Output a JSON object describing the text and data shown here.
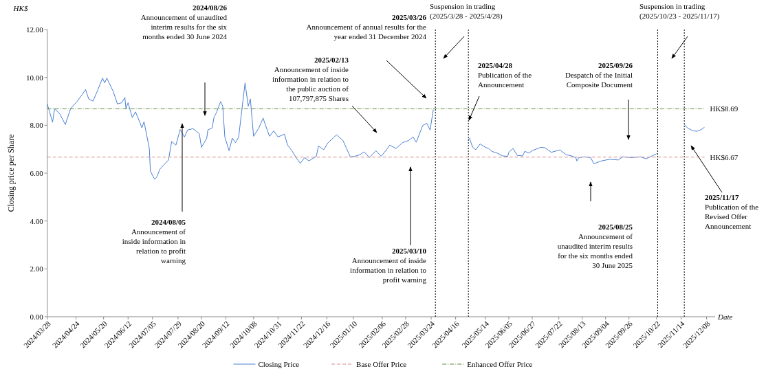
{
  "chart_data": {
    "type": "line",
    "xlabel": "Date",
    "ylabel": "Closing price per Share",
    "xlim": [
      "2024-03-28",
      "2025-12-16"
    ],
    "xticks": [
      {
        "value": "2024-03-28",
        "label": "2024/03/28"
      },
      {
        "value": "2024-04-24",
        "label": "2024/04/24"
      },
      {
        "value": "2024-05-20",
        "label": "2024/05/20"
      },
      {
        "value": "2024-06-12",
        "label": "2024/06/12"
      },
      {
        "value": "2024-07-05",
        "label": "2024/07/05"
      },
      {
        "value": "2024-07-29",
        "label": "2024/07/29"
      },
      {
        "value": "2024-08-20",
        "label": "2024/08/20"
      },
      {
        "value": "2024-09-12",
        "label": "2024/09/12"
      },
      {
        "value": "2024-10-08",
        "label": "2024/10/08"
      },
      {
        "value": "2024-10-31",
        "label": "2024/10/31"
      },
      {
        "value": "2024-11-22",
        "label": "2024/11/22"
      },
      {
        "value": "2024-12-16",
        "label": "2024/12/16"
      },
      {
        "value": "2025-01-10",
        "label": "2025/01/10"
      },
      {
        "value": "2025-02-06",
        "label": "2025/02/06"
      },
      {
        "value": "2025-02-28",
        "label": "2025/02/28"
      },
      {
        "value": "2025-03-24",
        "label": "2025/03/24"
      },
      {
        "value": "2025-04-16",
        "label": "2025/04/16"
      },
      {
        "value": "2025-05-14",
        "label": "2025/05/14"
      },
      {
        "value": "2025-06-05",
        "label": "2025/06/05"
      },
      {
        "value": "2025-06-27",
        "label": "2025/06/27"
      },
      {
        "value": "2025-07-22",
        "label": "2025/07/22"
      },
      {
        "value": "2025-08-13",
        "label": "2025/08/13"
      },
      {
        "value": "2025-09-04",
        "label": "2025/09/04"
      },
      {
        "value": "2025-09-26",
        "label": "2025/09/26"
      },
      {
        "value": "2025-10-22",
        "label": "2025/10/22"
      },
      {
        "value": "2025-11-14",
        "label": "2025/11/14"
      },
      {
        "value": "2025-12-08",
        "label": "2025/12/08"
      }
    ],
    "ylim": [
      0,
      12
    ],
    "yticks": [
      {
        "value": 0,
        "label": "0.00"
      },
      {
        "value": 2,
        "label": "2.00"
      },
      {
        "value": 4,
        "label": "4.00"
      },
      {
        "value": 6,
        "label": "6.00"
      },
      {
        "value": 8,
        "label": "8.00"
      },
      {
        "value": 10,
        "label": "10.00"
      },
      {
        "value": 12,
        "label": "12.00"
      }
    ],
    "grid": false,
    "legend": "bottom",
    "marker": "none",
    "series": [
      {
        "name": "Closing Price",
        "color": "#4a7fd4",
        "line_style": "solid",
        "x": [
          "2024-03-28",
          "2024-04-02",
          "2024-04-04",
          "2024-04-09",
          "2024-04-14",
          "2024-04-19",
          "2024-04-25",
          "2024-04-29",
          "2024-05-03",
          "2024-05-06",
          "2024-05-10",
          "2024-05-14",
          "2024-05-19",
          "2024-05-21",
          "2024-05-23",
          "2024-05-29",
          "2024-06-02",
          "2024-06-06",
          "2024-06-09",
          "2024-06-10",
          "2024-06-12",
          "2024-06-16",
          "2024-06-19",
          "2024-06-23",
          "2024-06-25",
          "2024-06-27",
          "2024-07-02",
          "2024-07-03",
          "2024-07-07",
          "2024-07-09",
          "2024-07-12",
          "2024-07-20",
          "2024-07-23",
          "2024-07-27",
          "2024-07-31",
          "2024-08-04",
          "2024-08-07",
          "2024-08-12",
          "2024-08-18",
          "2024-08-20",
          "2024-08-25",
          "2024-08-26",
          "2024-08-30",
          "2024-09-01",
          "2024-09-03",
          "2024-09-07",
          "2024-09-09",
          "2024-09-11",
          "2024-09-15",
          "2024-09-18",
          "2024-09-21",
          "2024-09-24",
          "2024-09-30",
          "2024-10-03",
          "2024-10-05",
          "2024-10-08",
          "2024-10-13",
          "2024-10-17",
          "2024-10-19",
          "2024-10-23",
          "2024-10-27",
          "2024-10-31",
          "2024-11-06",
          "2024-11-09",
          "2024-11-13",
          "2024-11-17",
          "2024-11-21",
          "2024-11-25",
          "2024-11-29",
          "2024-12-06",
          "2024-12-08",
          "2024-12-13",
          "2024-12-17",
          "2024-12-25",
          "2024-12-31",
          "2025-01-07",
          "2025-01-11",
          "2025-01-16",
          "2025-01-20",
          "2025-01-25",
          "2025-01-31",
          "2025-02-05",
          "2025-02-10",
          "2025-02-13",
          "2025-02-19",
          "2025-02-25",
          "2025-03-03",
          "2025-03-07",
          "2025-03-10",
          "2025-03-16",
          "2025-03-20",
          "2025-03-23",
          "2025-03-26",
          "2025-04-10",
          "2025-04-28",
          "2025-04-29",
          "2025-05-02",
          "2025-05-05",
          "2025-05-09",
          "2025-05-14",
          "2025-05-17",
          "2025-05-20",
          "2025-05-25",
          "2025-05-30",
          "2025-06-04",
          "2025-06-05",
          "2025-06-09",
          "2025-06-13",
          "2025-06-18",
          "2025-06-20",
          "2025-06-24",
          "2025-06-27",
          "2025-07-05",
          "2025-07-09",
          "2025-07-15",
          "2025-07-23",
          "2025-07-29",
          "2025-08-03",
          "2025-08-07",
          "2025-08-08",
          "2025-08-10",
          "2025-08-15",
          "2025-08-21",
          "2025-08-24",
          "2025-08-31",
          "2025-09-08",
          "2025-09-16",
          "2025-09-20",
          "2025-09-28",
          "2025-10-07",
          "2025-10-12",
          "2025-10-22",
          "2025-11-01",
          "2025-11-17",
          "2025-11-20",
          "2025-11-25",
          "2025-11-29",
          "2025-12-03",
          "2025-12-06"
        ],
        "values": [
          8.89,
          8.13,
          8.7,
          8.46,
          8.03,
          8.7,
          8.99,
          9.23,
          9.49,
          9.1,
          9.01,
          9.42,
          9.97,
          9.77,
          9.97,
          9.42,
          8.89,
          8.94,
          9.16,
          8.7,
          8.94,
          8.32,
          8.56,
          8.13,
          7.89,
          8.15,
          7.03,
          6.08,
          5.74,
          5.84,
          6.17,
          6.55,
          7.32,
          7.17,
          7.82,
          7.51,
          7.8,
          7.86,
          7.65,
          7.08,
          7.46,
          7.8,
          7.89,
          8.37,
          8.51,
          8.99,
          8.8,
          7.51,
          6.94,
          7.46,
          7.27,
          7.51,
          9.77,
          8.8,
          9.1,
          7.54,
          7.89,
          8.3,
          8.03,
          7.54,
          7.77,
          7.51,
          7.63,
          7.17,
          6.94,
          6.65,
          6.41,
          6.65,
          6.51,
          6.7,
          7.13,
          6.98,
          7.27,
          7.6,
          7.37,
          6.68,
          6.7,
          6.77,
          6.89,
          6.65,
          6.94,
          6.7,
          6.98,
          7.17,
          7.03,
          7.27,
          7.37,
          7.51,
          7.29,
          7.99,
          8.08,
          7.8,
          8.65,
          null,
          7.41,
          7.46,
          7.08,
          6.98,
          7.22,
          7.08,
          7.03,
          6.91,
          6.84,
          6.72,
          6.7,
          6.87,
          7.03,
          6.74,
          6.72,
          6.91,
          6.84,
          6.94,
          7.08,
          7.06,
          6.87,
          6.97,
          6.77,
          6.72,
          6.65,
          6.51,
          6.65,
          6.68,
          6.65,
          6.39,
          6.51,
          6.58,
          6.55,
          6.68,
          6.65,
          6.68,
          6.6,
          6.81,
          null,
          8.03,
          7.89,
          7.77,
          7.75,
          7.82,
          7.92
        ]
      },
      {
        "name": "Base Offer Price",
        "color": "#d58a87",
        "line_style": "dashed",
        "x": [
          "2024-03-28",
          "2025-12-06"
        ],
        "values": [
          6.67,
          6.67
        ],
        "value_labels": [
          null,
          "HK$6.67"
        ]
      },
      {
        "name": "Enhanced Offer Price",
        "color": "#5a8a3a",
        "line_style": "dashdot",
        "x": [
          "2024-03-28",
          "2025-12-06"
        ],
        "values": [
          8.69,
          8.69
        ],
        "value_labels": [
          null,
          "HK$8.69"
        ]
      }
    ],
    "ref_lines": [
      {
        "axis": "x",
        "value": "2025-03-28",
        "label": null,
        "color": "#000000",
        "line_style": "dotted"
      },
      {
        "axis": "x",
        "value": "2025-04-28",
        "label": null,
        "color": "#000000",
        "line_style": "dotted"
      },
      {
        "axis": "x",
        "value": "2025-10-23",
        "label": null,
        "color": "#000000",
        "line_style": "dotted"
      },
      {
        "axis": "x",
        "value": "2025-11-17",
        "label": null,
        "color": "#000000",
        "line_style": "dotted"
      }
    ],
    "annotations": [
      "HK$",
      "2024/08/26\nAnnouncement of unaudited\ninterim results for the six\nmonths ended 30 June 2024",
      "2024/08/05\nAnnouncement of\ninside information in\nrelation to profit\nwarning",
      "2025/02/13\nAnnouncement of inside\ninformation in relation to\nthe public auction of\n107,797,875 Shares",
      "2025/03/26\nAnnouncement of annual results for the\nyear ended 31 December 2024",
      "2025/03/10\nAnnouncement of inside\ninformation in relation to\nprofit warning",
      "Suspension in trading\n(2025/3/28 - 2025/4/28)",
      "2025/04/28\nPublication of the\nAnnouncement",
      "2025/09/26\nDespatch of the Initial\nComposite Document",
      "2025/08/25\nAnnouncement of\nunaudited interim results\nfor the six months ended\n30 June 2025",
      "Suspension in trading\n(2025/10/23 - 2025/11/17)",
      "2025/11/17\nPublication of the\nRevised Offer\nAnnouncement"
    ]
  }
}
